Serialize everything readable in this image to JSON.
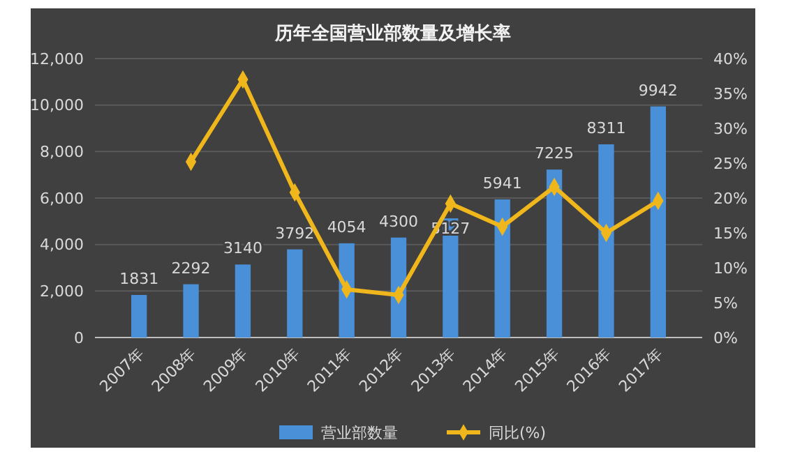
{
  "chart_data": {
    "type": "bar",
    "title": "历年全国营业部数量及增长率",
    "categories": [
      "2007年",
      "2008年",
      "2009年",
      "2010年",
      "2011年",
      "2012年",
      "2013年",
      "2014年",
      "2015年",
      "2016年",
      "2017年"
    ],
    "series": [
      {
        "name": "营业部数量",
        "color": "#4a90d9",
        "values": [
          1831,
          2292,
          3140,
          3792,
          4054,
          4300,
          5127,
          5941,
          7225,
          8311,
          9942
        ],
        "data_labels": true
      },
      {
        "name": "同比(%)",
        "type": "line",
        "axis": "y2",
        "color": "#f0b71c",
        "marker": "diamond",
        "values": [
          null,
          25.2,
          37.0,
          20.8,
          6.9,
          6.1,
          19.2,
          15.9,
          21.6,
          15.0,
          19.6
        ]
      }
    ],
    "ylim": [
      0,
      12000
    ],
    "yticks": [
      {
        "value": 0,
        "label": "0"
      },
      {
        "value": 2000,
        "label": "2,000"
      },
      {
        "value": 4000,
        "label": "4,000"
      },
      {
        "value": 6000,
        "label": "6,000"
      },
      {
        "value": 8000,
        "label": "8,000"
      },
      {
        "value": 10000,
        "label": "10,000"
      },
      {
        "value": 12000,
        "label": "12,000"
      }
    ],
    "y2lim": [
      0,
      40
    ],
    "y2ticks": [
      {
        "value": 0,
        "label": "0%"
      },
      {
        "value": 5,
        "label": "5%"
      },
      {
        "value": 10,
        "label": "10%"
      },
      {
        "value": 15,
        "label": "15%"
      },
      {
        "value": 20,
        "label": "20%"
      },
      {
        "value": 25,
        "label": "25%"
      },
      {
        "value": 30,
        "label": "30%"
      },
      {
        "value": 35,
        "label": "35%"
      },
      {
        "value": 40,
        "label": "40%"
      }
    ],
    "grid": "y",
    "legend": "bottom"
  }
}
